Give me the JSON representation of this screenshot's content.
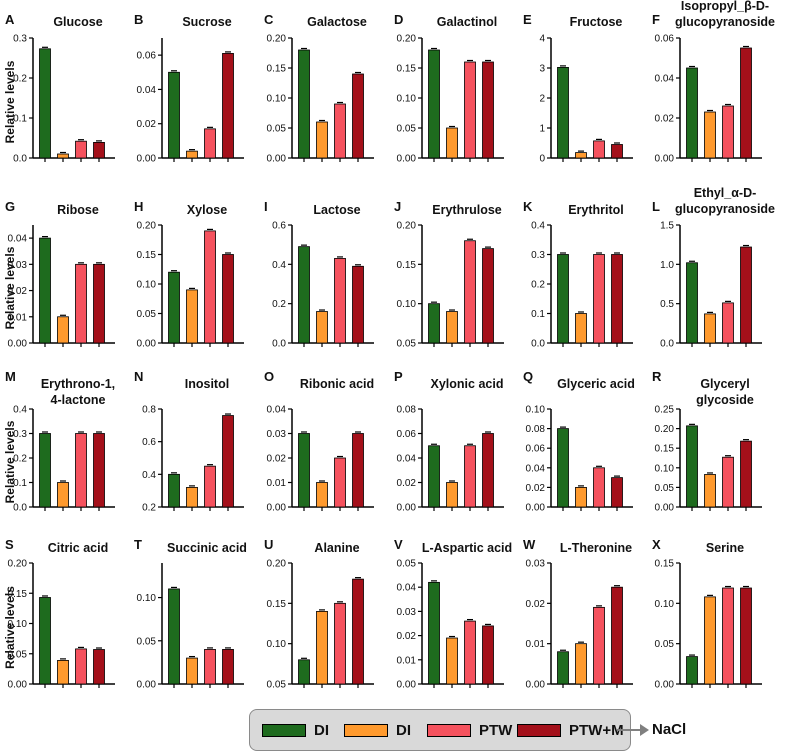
{
  "figure": {
    "ylabel": "Relative levels",
    "legend": [
      {
        "label": "DI",
        "color": "#1e6b1e"
      },
      {
        "label": "DI",
        "color": "#ff9a2e"
      },
      {
        "label": "PTW",
        "color": "#f5525e"
      },
      {
        "label": "PTW+M",
        "color": "#a4101a"
      }
    ],
    "legend_suffix": "NaCl"
  },
  "chart_data": [
    {
      "type": "bar",
      "letter": "A",
      "title": "Glucose",
      "categories": [
        "DI",
        "DI",
        "PTW",
        "PTW+M"
      ],
      "values": [
        0.273,
        0.01,
        0.042,
        0.039
      ],
      "yticks": [
        "0.0",
        "0.1",
        "0.2",
        "0.3"
      ],
      "ylim": [
        0,
        0.3
      ]
    },
    {
      "type": "bar",
      "letter": "B",
      "title": "Sucrose",
      "categories": [
        "DI",
        "DI",
        "PTW",
        "PTW+M"
      ],
      "values": [
        0.05,
        0.004,
        0.017,
        0.061
      ],
      "yticks": [
        "0.00",
        "0.02",
        "0.04",
        "0.06"
      ],
      "ylim": [
        0,
        0.07
      ]
    },
    {
      "type": "bar",
      "letter": "C",
      "title": "Galactose",
      "categories": [
        "DI",
        "DI",
        "PTW",
        "PTW+M"
      ],
      "values": [
        0.18,
        0.06,
        0.09,
        0.14
      ],
      "yticks": [
        "0.00",
        "0.05",
        "0.10",
        "0.15",
        "0.20"
      ],
      "ylim": [
        0,
        0.2
      ]
    },
    {
      "type": "bar",
      "letter": "D",
      "title": "Galactinol",
      "categories": [
        "DI",
        "DI",
        "PTW",
        "PTW+M"
      ],
      "values": [
        0.18,
        0.05,
        0.16,
        0.16
      ],
      "yticks": [
        "0.00",
        "0.05",
        "0.10",
        "0.15",
        "0.20"
      ],
      "ylim": [
        0,
        0.2
      ]
    },
    {
      "type": "bar",
      "letter": "E",
      "title": "Fructose",
      "categories": [
        "DI",
        "DI",
        "PTW",
        "PTW+M"
      ],
      "values": [
        3.02,
        0.18,
        0.57,
        0.45
      ],
      "yticks": [
        "0",
        "1",
        "2",
        "3",
        "4"
      ],
      "ylim": [
        0,
        4
      ]
    },
    {
      "type": "bar",
      "letter": "F",
      "title": "Isopropyl_β-D-glucopyranoside",
      "title_lines": [
        "Isopropyl_β-D-",
        "glucopyranoside"
      ],
      "categories": [
        "DI",
        "DI",
        "PTW",
        "PTW+M"
      ],
      "values": [
        0.045,
        0.023,
        0.026,
        0.055
      ],
      "yticks": [
        "0.00",
        "0.02",
        "0.04",
        "0.06"
      ],
      "ylim": [
        0,
        0.06
      ]
    },
    {
      "type": "bar",
      "letter": "G",
      "title": "Ribose",
      "categories": [
        "DI",
        "DI",
        "PTW",
        "PTW+M"
      ],
      "values": [
        0.04,
        0.01,
        0.03,
        0.03
      ],
      "yticks": [
        "0.00",
        "0.01",
        "0.02",
        "0.03",
        "0.04"
      ],
      "ylim": [
        0,
        0.045
      ]
    },
    {
      "type": "bar",
      "letter": "H",
      "title": "Xylose",
      "categories": [
        "DI",
        "DI",
        "PTW",
        "PTW+M"
      ],
      "values": [
        0.12,
        0.09,
        0.19,
        0.15
      ],
      "yticks": [
        "0.00",
        "0.05",
        "0.10",
        "0.15",
        "0.20"
      ],
      "ylim": [
        0,
        0.2
      ]
    },
    {
      "type": "bar",
      "letter": "I",
      "title": "Lactose",
      "categories": [
        "DI",
        "DI",
        "PTW",
        "PTW+M"
      ],
      "values": [
        0.49,
        0.16,
        0.43,
        0.39
      ],
      "yticks": [
        "0.0",
        "0.2",
        "0.4",
        "0.6"
      ],
      "ylim": [
        0,
        0.6
      ]
    },
    {
      "type": "bar",
      "letter": "J",
      "title": "Erythrulose",
      "categories": [
        "DI",
        "DI",
        "PTW",
        "PTW+M"
      ],
      "values": [
        0.1,
        0.09,
        0.18,
        0.17
      ],
      "yticks": [
        "0.05",
        "0.10",
        "0.15",
        "0.20"
      ],
      "ylim": [
        0.05,
        0.2
      ]
    },
    {
      "type": "bar",
      "letter": "K",
      "title": "Erythritol",
      "categories": [
        "DI",
        "DI",
        "PTW",
        "PTW+M"
      ],
      "values": [
        0.3,
        0.1,
        0.3,
        0.3
      ],
      "yticks": [
        "0.0",
        "0.1",
        "0.2",
        "0.3",
        "0.4"
      ],
      "ylim": [
        0,
        0.4
      ]
    },
    {
      "type": "bar",
      "letter": "L",
      "title": "Ethyl_α-D-glucopyranoside",
      "title_lines": [
        "Ethyl_α-D-",
        "glucopyranoside"
      ],
      "categories": [
        "DI",
        "DI",
        "PTW",
        "PTW+M"
      ],
      "values": [
        1.02,
        0.37,
        0.51,
        1.22
      ],
      "yticks": [
        "0.0",
        "0.5",
        "1.0",
        "1.5"
      ],
      "ylim": [
        0,
        1.5
      ]
    },
    {
      "type": "bar",
      "letter": "M",
      "title": "Erythrono-1, 4-lactone",
      "title_lines": [
        "Erythrono-1,",
        "4-lactone"
      ],
      "categories": [
        "DI",
        "DI",
        "PTW",
        "PTW+M"
      ],
      "values": [
        0.3,
        0.1,
        0.3,
        0.3
      ],
      "yticks": [
        "0.0",
        "0.1",
        "0.2",
        "0.3",
        "0.4"
      ],
      "ylim": [
        0,
        0.4
      ]
    },
    {
      "type": "bar",
      "letter": "N",
      "title": "Inositol",
      "categories": [
        "DI",
        "DI",
        "PTW",
        "PTW+M"
      ],
      "values": [
        0.4,
        0.32,
        0.45,
        0.76
      ],
      "yticks": [
        "0.2",
        "0.4",
        "0.6",
        "0.8"
      ],
      "ylim": [
        0.2,
        0.8
      ]
    },
    {
      "type": "bar",
      "letter": "O",
      "title": "Ribonic acid",
      "categories": [
        "DI",
        "DI",
        "PTW",
        "PTW+M"
      ],
      "values": [
        0.03,
        0.01,
        0.02,
        0.03
      ],
      "yticks": [
        "0.00",
        "0.01",
        "0.02",
        "0.03",
        "0.04"
      ],
      "ylim": [
        0,
        0.04
      ]
    },
    {
      "type": "bar",
      "letter": "P",
      "title": "Xylonic acid",
      "categories": [
        "DI",
        "DI",
        "PTW",
        "PTW+M"
      ],
      "values": [
        0.05,
        0.02,
        0.05,
        0.06
      ],
      "yticks": [
        "0.00",
        "0.02",
        "0.04",
        "0.06",
        "0.08"
      ],
      "ylim": [
        0,
        0.08
      ]
    },
    {
      "type": "bar",
      "letter": "Q",
      "title": "Glyceric acid",
      "categories": [
        "DI",
        "DI",
        "PTW",
        "PTW+M"
      ],
      "values": [
        0.08,
        0.02,
        0.04,
        0.03
      ],
      "yticks": [
        "0.00",
        "0.02",
        "0.04",
        "0.06",
        "0.08",
        "0.10"
      ],
      "ylim": [
        0,
        0.1
      ]
    },
    {
      "type": "bar",
      "letter": "R",
      "title": "Glyceryl glycoside",
      "title_lines": [
        "Glyceryl",
        "glycoside"
      ],
      "categories": [
        "DI",
        "DI",
        "PTW",
        "PTW+M"
      ],
      "values": [
        0.207,
        0.083,
        0.127,
        0.168
      ],
      "yticks": [
        "0.00",
        "0.05",
        "0.10",
        "0.15",
        "0.20",
        "0.25"
      ],
      "ylim": [
        0,
        0.25
      ]
    },
    {
      "type": "bar",
      "letter": "S",
      "title": "Citric acid",
      "categories": [
        "DI",
        "DI",
        "PTW",
        "PTW+M"
      ],
      "values": [
        0.143,
        0.039,
        0.058,
        0.057
      ],
      "yticks": [
        "0.00",
        "0.05",
        "0.10",
        "0.15",
        "0.20"
      ],
      "ylim": [
        0,
        0.2
      ]
    },
    {
      "type": "bar",
      "letter": "T",
      "title": "Succinic acid",
      "categories": [
        "DI",
        "DI",
        "PTW",
        "PTW+M"
      ],
      "values": [
        0.11,
        0.03,
        0.04,
        0.04
      ],
      "yticks": [
        "0.00",
        "0.05",
        "0.10"
      ],
      "ylim": [
        0,
        0.14
      ]
    },
    {
      "type": "bar",
      "letter": "U",
      "title": "Alanine",
      "categories": [
        "DI",
        "DI",
        "PTW",
        "PTW+M"
      ],
      "values": [
        0.08,
        0.14,
        0.15,
        0.18
      ],
      "yticks": [
        "0.05",
        "0.10",
        "0.15",
        "0.20"
      ],
      "ylim": [
        0.05,
        0.2
      ]
    },
    {
      "type": "bar",
      "letter": "V",
      "title": "L-Aspartic acid",
      "categories": [
        "DI",
        "DI",
        "PTW",
        "PTW+M"
      ],
      "values": [
        0.042,
        0.019,
        0.026,
        0.024
      ],
      "yticks": [
        "0.00",
        "0.01",
        "0.02",
        "0.03",
        "0.04",
        "0.05"
      ],
      "ylim": [
        0,
        0.05
      ]
    },
    {
      "type": "bar",
      "letter": "W",
      "title": "L-Theronine",
      "categories": [
        "DI",
        "DI",
        "PTW",
        "PTW+M"
      ],
      "values": [
        0.008,
        0.01,
        0.019,
        0.024
      ],
      "yticks": [
        "0.00",
        "0.01",
        "0.02",
        "0.03"
      ],
      "ylim": [
        0,
        0.03
      ]
    },
    {
      "type": "bar",
      "letter": "X",
      "title": "Serine",
      "categories": [
        "DI",
        "DI",
        "PTW",
        "PTW+M"
      ],
      "values": [
        0.034,
        0.108,
        0.119,
        0.119
      ],
      "yticks": [
        "0.00",
        "0.05",
        "0.10",
        "0.15"
      ],
      "ylim": [
        0,
        0.15
      ]
    }
  ]
}
